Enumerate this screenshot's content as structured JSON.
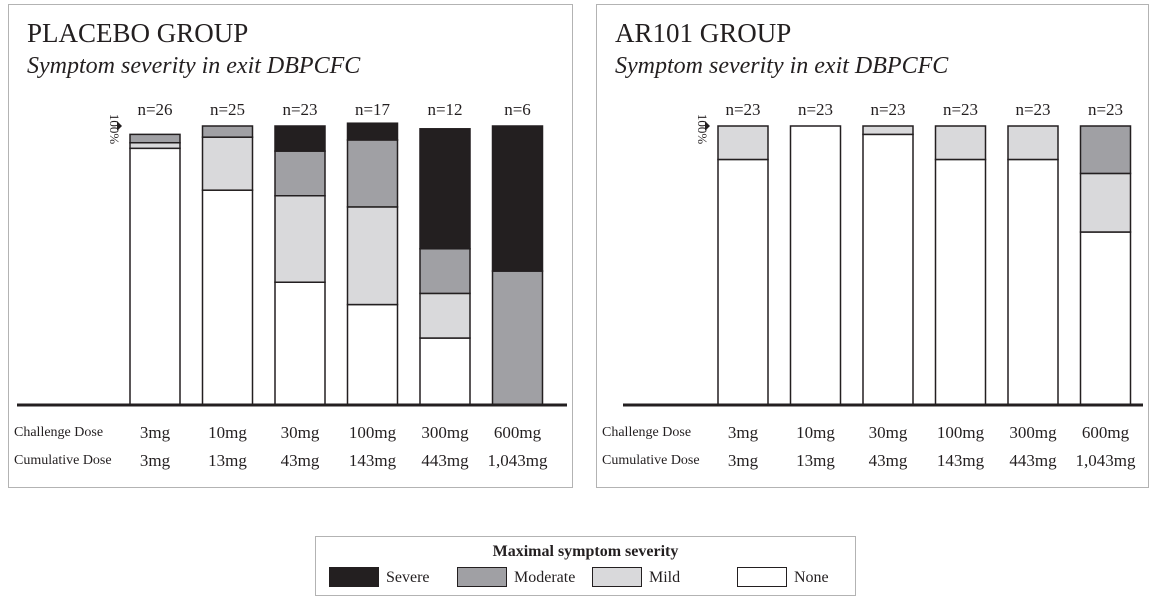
{
  "colors": {
    "severe": "#231f20",
    "moderate": "#a0a0a4",
    "mild": "#d9d9db",
    "none": "#ffffff",
    "outline": "#231f20"
  },
  "legend": {
    "title": "Maximal symptom severity",
    "items": [
      {
        "key": "severe",
        "label": "Severe"
      },
      {
        "key": "moderate",
        "label": "Moderate"
      },
      {
        "key": "mild",
        "label": "Mild"
      },
      {
        "key": "none",
        "label": "None"
      }
    ]
  },
  "chart_data": [
    {
      "type": "bar",
      "stacked": true,
      "title": "PLACEBO GROUP",
      "subtitle": "Symptom severity in exit DBPCFC",
      "y_axis_label": "100%",
      "ylim": [
        0,
        100
      ],
      "row_labels": [
        "Challenge Dose",
        "Cumulative Dose"
      ],
      "categories": [
        "3mg",
        "10mg",
        "30mg",
        "100mg",
        "300mg",
        "600mg"
      ],
      "cumulative_doses": [
        "3mg",
        "13mg",
        "43mg",
        "143mg",
        "443mg",
        "1,043mg"
      ],
      "n_labels": [
        "n=26",
        "n=25",
        "n=23",
        "n=17",
        "n=12",
        "n=6"
      ],
      "series": [
        {
          "key": "none",
          "values": [
            92,
            77,
            44,
            36,
            24,
            0
          ]
        },
        {
          "key": "mild",
          "values": [
            2,
            19,
            31,
            35,
            16,
            0
          ]
        },
        {
          "key": "moderate",
          "values": [
            3,
            4,
            16,
            24,
            16,
            48
          ]
        },
        {
          "key": "severe",
          "values": [
            0,
            0,
            9,
            6,
            43,
            52
          ]
        }
      ]
    },
    {
      "type": "bar",
      "stacked": true,
      "title": "AR101 GROUP",
      "subtitle": "Symptom severity in exit DBPCFC",
      "y_axis_label": "100%",
      "ylim": [
        0,
        100
      ],
      "row_labels": [
        "Challenge Dose",
        "Cumulative Dose"
      ],
      "categories": [
        "3mg",
        "10mg",
        "30mg",
        "100mg",
        "300mg",
        "600mg"
      ],
      "cumulative_doses": [
        "3mg",
        "13mg",
        "43mg",
        "143mg",
        "443mg",
        "1,043mg"
      ],
      "n_labels": [
        "n=23",
        "n=23",
        "n=23",
        "n=23",
        "n=23",
        "n=23"
      ],
      "series": [
        {
          "key": "none",
          "values": [
            88,
            100,
            97,
            88,
            88,
            62
          ]
        },
        {
          "key": "mild",
          "values": [
            12,
            0,
            3,
            12,
            12,
            21
          ]
        },
        {
          "key": "moderate",
          "values": [
            0,
            0,
            0,
            0,
            0,
            17
          ]
        },
        {
          "key": "severe",
          "values": [
            0,
            0,
            0,
            0,
            0,
            0
          ]
        }
      ]
    }
  ]
}
